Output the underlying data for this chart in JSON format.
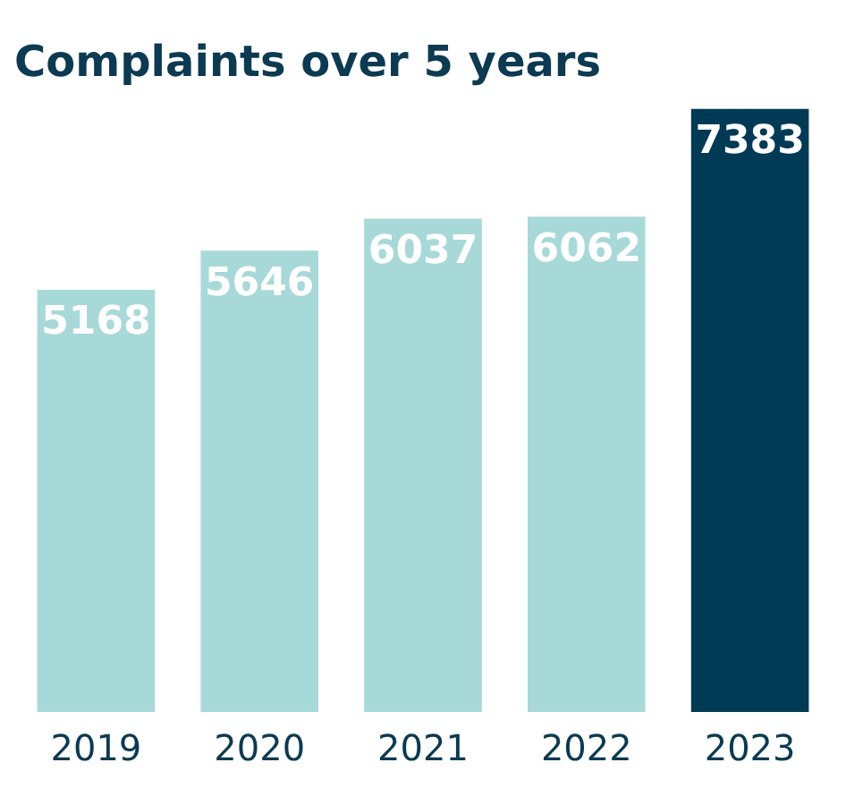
{
  "chart_data": {
    "type": "bar",
    "title": "Complaints over 5 years",
    "categories": [
      "2019",
      "2020",
      "2021",
      "2022",
      "2023"
    ],
    "values": [
      5168,
      5646,
      6037,
      6062,
      7383
    ],
    "colors": [
      "#a8d9d9",
      "#a8d9d9",
      "#a8d9d9",
      "#a8d9d9",
      "#003a55"
    ],
    "data_labels": true,
    "grid": false,
    "legend": false
  }
}
